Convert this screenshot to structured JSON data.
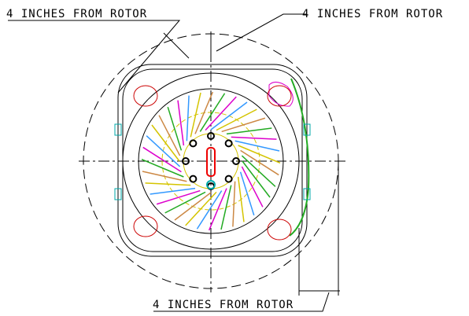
{
  "labels": {
    "top_left": "4 INCHES FROM ROTOR",
    "top_right": "4 INCHES FROM ROTOR",
    "bottom": "4 INCHES FROM ROTOR"
  }
}
